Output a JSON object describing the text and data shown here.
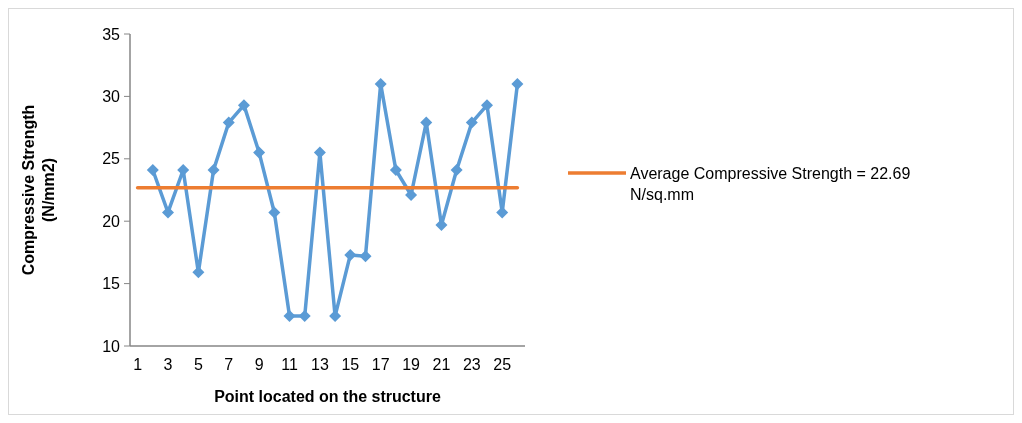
{
  "chart_data": {
    "type": "line",
    "xlabel": "Point located on the structure",
    "ylabel": "Compressive Strength (N/mm2)",
    "x": [
      1,
      2,
      3,
      4,
      5,
      6,
      7,
      8,
      9,
      10,
      11,
      12,
      13,
      14,
      15,
      16,
      17,
      18,
      19,
      20,
      21,
      22,
      23,
      24,
      25,
      26
    ],
    "xlim": [
      0.5,
      26.5
    ],
    "xticks": [
      1,
      3,
      5,
      7,
      9,
      11,
      13,
      15,
      17,
      19,
      21,
      23,
      25
    ],
    "series": [
      {
        "color": "#5b9bd5",
        "marker": "diamond",
        "values": [
          null,
          24.1,
          20.7,
          24.1,
          15.9,
          24.1,
          27.9,
          29.3,
          25.5,
          20.7,
          12.4,
          12.4,
          25.5,
          12.4,
          17.3,
          17.2,
          31.0,
          24.1,
          22.1,
          27.9,
          19.7,
          24.1,
          27.9,
          29.3,
          20.7,
          31.0
        ]
      },
      {
        "name": "Average Compressive Strength = 22.69 N/sq.mm",
        "color": "#ed7d31",
        "marker": "none",
        "values": [
          22.69,
          22.69,
          22.69,
          22.69,
          22.69,
          22.69,
          22.69,
          22.69,
          22.69,
          22.69,
          22.69,
          22.69,
          22.69,
          22.69,
          22.69,
          22.69,
          22.69,
          22.69,
          22.69,
          22.69,
          22.69,
          22.69,
          22.69,
          22.69,
          22.69,
          22.69
        ]
      }
    ],
    "ylim": [
      10,
      35
    ],
    "yticks": [
      10,
      15,
      20,
      25,
      30,
      35
    ],
    "grid": false,
    "legend": "right"
  }
}
